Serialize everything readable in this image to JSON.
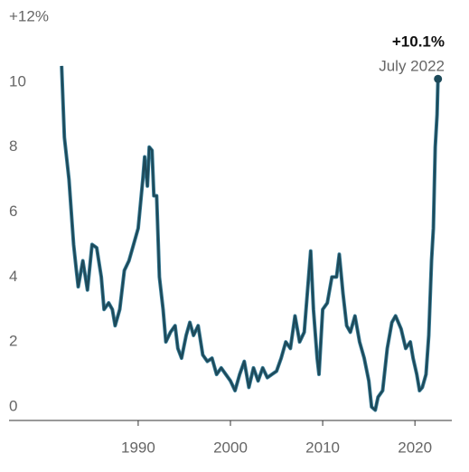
{
  "chart_data": {
    "type": "line",
    "x": [
      1981.7,
      1982.0,
      1982.5,
      1983.0,
      1983.3,
      1983.5,
      1984.0,
      1984.5,
      1985.0,
      1985.5,
      1986.0,
      1986.3,
      1986.8,
      1987.2,
      1987.5,
      1988.0,
      1988.5,
      1989.0,
      1989.5,
      1990.0,
      1990.5,
      1990.7,
      1991.0,
      1991.2,
      1991.5,
      1991.7,
      1992.0,
      1992.3,
      1992.7,
      1993.0,
      1993.5,
      1994.0,
      1994.3,
      1994.7,
      1995.2,
      1995.6,
      1996.0,
      1996.5,
      1997.0,
      1997.5,
      1998.0,
      1998.5,
      1999.0,
      1999.5,
      2000.0,
      2000.5,
      2001.0,
      2001.5,
      2002.0,
      2002.5,
      2003.0,
      2003.5,
      2004.0,
      2004.5,
      2005.0,
      2005.5,
      2006.0,
      2006.5,
      2007.0,
      2007.5,
      2008.0,
      2008.7,
      2009.0,
      2009.4,
      2009.6,
      2010.0,
      2010.5,
      2011.0,
      2011.5,
      2011.8,
      2012.2,
      2012.6,
      2013.0,
      2013.5,
      2014.0,
      2014.5,
      2015.0,
      2015.3,
      2015.7,
      2016.0,
      2016.5,
      2017.0,
      2017.5,
      2017.9,
      2018.5,
      2019.0,
      2019.5,
      2019.8,
      2020.2,
      2020.5,
      2020.8,
      2021.2,
      2021.5,
      2021.8,
      2022.0,
      2022.2,
      2022.4,
      2022.5
    ],
    "series": [
      {
        "color": "#1d4a5a",
        "values": [
          10.5,
          8.3,
          7.0,
          5.0,
          4.2,
          3.7,
          4.5,
          3.6,
          5.0,
          4.9,
          4.0,
          3.0,
          3.2,
          3.0,
          2.5,
          3.0,
          4.2,
          4.5,
          5.0,
          5.5,
          7.0,
          7.7,
          6.8,
          8.0,
          7.9,
          6.5,
          6.5,
          4.0,
          3.0,
          2.0,
          2.3,
          2.5,
          1.8,
          1.5,
          2.2,
          2.6,
          2.2,
          2.5,
          1.6,
          1.4,
          1.5,
          1.0,
          1.2,
          1.0,
          0.8,
          0.5,
          1.0,
          1.4,
          0.6,
          1.2,
          0.8,
          1.2,
          0.9,
          1.0,
          1.1,
          1.5,
          2.0,
          1.8,
          2.8,
          2.0,
          2.3,
          4.8,
          3.0,
          1.5,
          1.0,
          3.0,
          3.2,
          4.0,
          4.0,
          4.7,
          3.5,
          2.5,
          2.3,
          2.8,
          2.0,
          1.5,
          0.8,
          0.0,
          -0.1,
          0.3,
          0.5,
          1.8,
          2.6,
          2.8,
          2.4,
          1.8,
          2.0,
          1.5,
          1.0,
          0.5,
          0.6,
          1.0,
          2.2,
          4.5,
          5.5,
          8.0,
          9.0,
          10.1
        ]
      }
    ],
    "annotation": {
      "value": "+10.1%",
      "date": "July 2022"
    },
    "xlim": [
      1976,
      2024
    ],
    "xticks": [
      1990,
      2000,
      2010,
      2020
    ],
    "ylim": [
      -0.5,
      12.5
    ],
    "yticks": [
      0,
      2,
      4,
      6,
      8,
      10,
      {
        "value": 12,
        "label": "+12%"
      }
    ]
  }
}
